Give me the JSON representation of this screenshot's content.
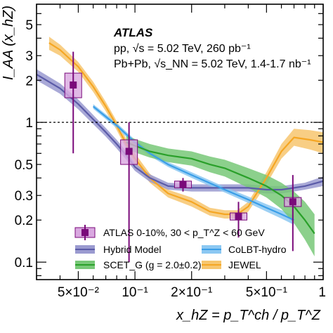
{
  "chart_data": {
    "type": "line",
    "xscale": "log",
    "yscale": "log",
    "xlim": [
      0.03,
      1.0
    ],
    "ylim": [
      0.075,
      7.0
    ],
    "x_ticklabels": [
      "5×10⁻²",
      "10⁻¹",
      "2×10⁻¹",
      "5×10⁻¹",
      "1"
    ],
    "y_ticklabels": [
      "0.1",
      "0.2",
      "0.3",
      "0.5",
      "1",
      "2",
      "3",
      "5"
    ],
    "xlabel": "x_hZ = p_T^ch / p_T^Z",
    "ylabel": "I_AA (x_hZ)",
    "reference_line": 1,
    "annotations": [
      "ATLAS",
      "pp, √s = 5.02 TeV, 260 pb⁻¹",
      "Pb+Pb, √s_NN = 5.02 TeV, 1.4-1.7 nb⁻¹"
    ],
    "legend_position": "bottom-left",
    "legend": [
      "ATLAS 0-10%, 30 < p_T^Z < 60 GeV",
      "Hybrid Model",
      "CoLBT-hydro",
      "SCET_G (g = 2.0±0.2)",
      "JEWEL"
    ],
    "data": {
      "name": "ATLAS 0-10%, 30 < p_T^Z < 60 GeV",
      "color": "#7a0a7a",
      "points": [
        {
          "x": 0.047,
          "y": 1.85,
          "y_lo": 0.6,
          "y_hi": 3.2,
          "sys_lo": 1.5,
          "sys_hi": 2.25
        },
        {
          "x": 0.093,
          "y": 0.62,
          "y_lo": 0.1,
          "y_hi": 1.0,
          "sys_lo": 0.5,
          "sys_hi": 0.75
        },
        {
          "x": 0.18,
          "y": 0.36,
          "y_lo": 0.32,
          "y_hi": 0.4,
          "sys_lo": 0.34,
          "sys_hi": 0.38
        },
        {
          "x": 0.355,
          "y": 0.212,
          "y_lo": 0.15,
          "y_hi": 0.27,
          "sys_lo": 0.2,
          "sys_hi": 0.225
        },
        {
          "x": 0.69,
          "y": 0.27,
          "y_lo": 0.12,
          "y_hi": 0.42,
          "sys_lo": 0.25,
          "sys_hi": 0.29
        }
      ]
    },
    "series": [
      {
        "name": "JEWEL",
        "color": "#f5a623",
        "band_color": "#f7c66e",
        "x": [
          0.035,
          0.04,
          0.05,
          0.06,
          0.07,
          0.08,
          0.09,
          0.1,
          0.12,
          0.15,
          0.2,
          0.25,
          0.3,
          0.35,
          0.4,
          0.5,
          0.6,
          0.7,
          0.85,
          1.0
        ],
        "y": [
          3.7,
          3.3,
          2.5,
          1.8,
          1.3,
          0.95,
          0.7,
          0.55,
          0.4,
          0.31,
          0.27,
          0.23,
          0.22,
          0.22,
          0.25,
          0.4,
          0.62,
          0.78,
          0.75,
          0.72
        ],
        "y_lo": [
          3.3,
          3.0,
          2.3,
          1.65,
          1.2,
          0.88,
          0.65,
          0.51,
          0.37,
          0.29,
          0.25,
          0.215,
          0.205,
          0.205,
          0.23,
          0.36,
          0.55,
          0.68,
          0.64,
          0.6
        ],
        "y_hi": [
          4.1,
          3.6,
          2.7,
          1.95,
          1.4,
          1.02,
          0.76,
          0.6,
          0.43,
          0.33,
          0.29,
          0.245,
          0.235,
          0.235,
          0.27,
          0.44,
          0.7,
          0.9,
          0.88,
          0.85
        ]
      },
      {
        "name": "Hybrid Model",
        "color": "#5b5ba8",
        "band_color": "#9a9ad0",
        "x": [
          0.03,
          0.04,
          0.05,
          0.06,
          0.07,
          0.08,
          0.09,
          0.1,
          0.12,
          0.15,
          0.2,
          0.3,
          0.4,
          0.5,
          0.6,
          0.7,
          0.8,
          1.0
        ],
        "y": [
          2.2,
          1.75,
          1.35,
          1.05,
          0.85,
          0.7,
          0.58,
          0.48,
          0.4,
          0.35,
          0.34,
          0.34,
          0.34,
          0.33,
          0.33,
          0.34,
          0.35,
          0.38
        ],
        "y_lo": [
          2.0,
          1.6,
          1.24,
          0.97,
          0.79,
          0.65,
          0.54,
          0.45,
          0.375,
          0.33,
          0.32,
          0.32,
          0.32,
          0.31,
          0.31,
          0.32,
          0.33,
          0.35
        ],
        "y_hi": [
          2.4,
          1.9,
          1.46,
          1.13,
          0.91,
          0.75,
          0.62,
          0.51,
          0.425,
          0.37,
          0.36,
          0.36,
          0.36,
          0.35,
          0.35,
          0.36,
          0.37,
          0.41
        ]
      },
      {
        "name": "CoLBT-hydro",
        "color": "#3a9ee8",
        "band_color": "#8cc8f2",
        "x": [
          0.06,
          0.08,
          0.1,
          0.12,
          0.15,
          0.2,
          0.3,
          0.4,
          0.5,
          0.6,
          0.7
        ],
        "y": [
          1.3,
          0.95,
          0.72,
          0.6,
          0.5,
          0.42,
          0.33,
          0.28,
          0.245,
          0.22,
          0.2
        ],
        "y_lo": [
          1.25,
          0.91,
          0.69,
          0.575,
          0.48,
          0.4,
          0.315,
          0.265,
          0.23,
          0.205,
          0.185
        ],
        "y_hi": [
          1.35,
          0.99,
          0.75,
          0.625,
          0.52,
          0.44,
          0.345,
          0.295,
          0.26,
          0.235,
          0.215
        ]
      },
      {
        "name": "SCET_G (g = 2.0±0.2)",
        "color": "#2aa02a",
        "band_color": "#78c878",
        "x": [
          0.09,
          0.1,
          0.12,
          0.15,
          0.2,
          0.25,
          0.3,
          0.4,
          0.5,
          0.6,
          0.7,
          0.8,
          0.9
        ],
        "y": [
          0.72,
          0.68,
          0.62,
          0.58,
          0.55,
          0.5,
          0.47,
          0.4,
          0.35,
          0.3,
          0.25,
          0.2,
          0.16
        ],
        "y_lo": [
          0.64,
          0.61,
          0.56,
          0.52,
          0.49,
          0.44,
          0.41,
          0.34,
          0.29,
          0.24,
          0.19,
          0.145,
          0.11
        ],
        "y_hi": [
          0.8,
          0.76,
          0.7,
          0.65,
          0.62,
          0.57,
          0.54,
          0.47,
          0.42,
          0.37,
          0.32,
          0.27,
          0.22
        ]
      }
    ]
  }
}
